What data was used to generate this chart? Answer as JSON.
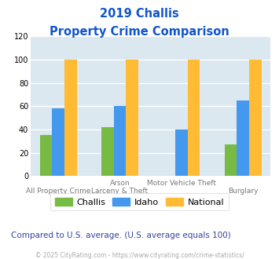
{
  "title_line1": "2019 Challis",
  "title_line2": "Property Crime Comparison",
  "challis": [
    35,
    42,
    0,
    27
  ],
  "idaho": [
    58,
    60,
    40,
    65
  ],
  "national": [
    100,
    100,
    100,
    100
  ],
  "challis_color": "#77bb44",
  "idaho_color": "#4499ee",
  "national_color": "#ffbb33",
  "ylim": [
    0,
    120
  ],
  "yticks": [
    0,
    20,
    40,
    60,
    80,
    100,
    120
  ],
  "bg_color": "#dce8f0",
  "title_color": "#1155cc",
  "top_labels": [
    "",
    "Arson",
    "Motor Vehicle Theft",
    ""
  ],
  "bottom_labels": [
    "All Property Crime",
    "Larceny & Theft",
    "",
    "Burglary"
  ],
  "subtitle_note": "Compared to U.S. average. (U.S. average equals 100)",
  "footer": "© 2025 CityRating.com - https://www.cityrating.com/crime-statistics/",
  "legend_labels": [
    "Challis",
    "Idaho",
    "National"
  ],
  "subtitle_color": "#334499",
  "footer_color": "#aaaaaa"
}
